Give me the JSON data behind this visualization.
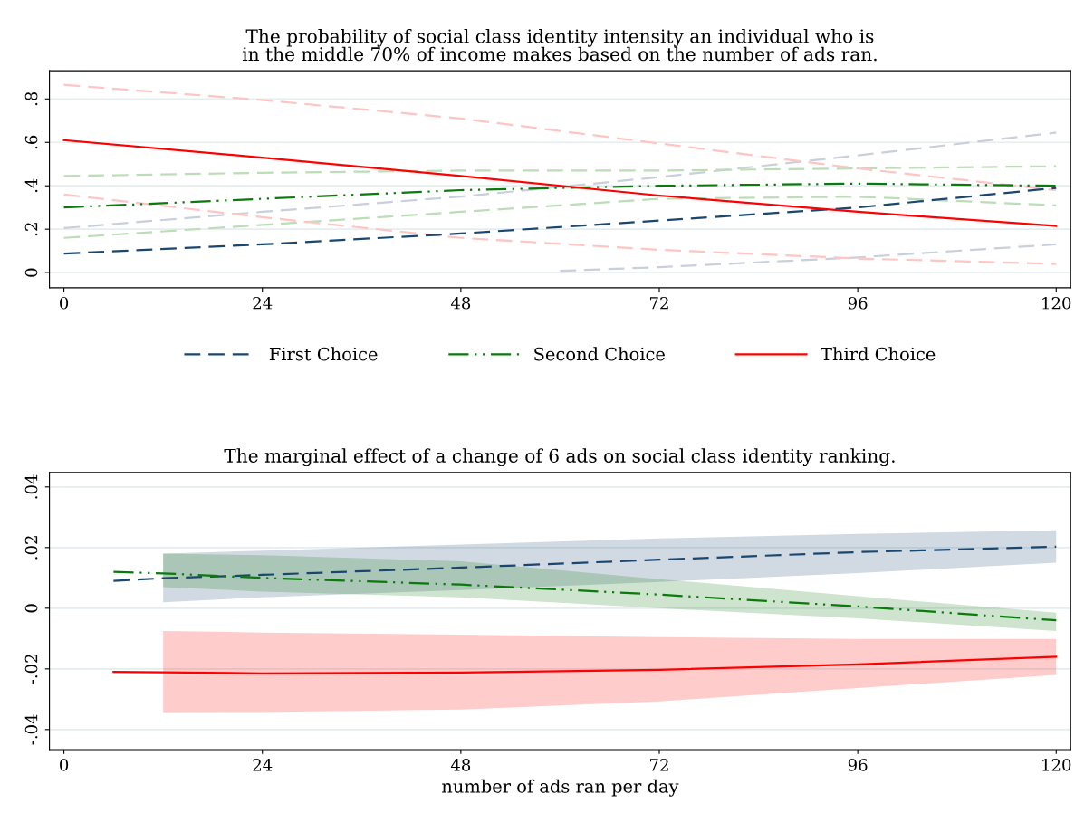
{
  "chart_data": [
    {
      "type": "line",
      "title": "The probability of social class identity intensity an individual who is\nin the middle 70% of income makes based on the number of ads ran.",
      "x": [
        0,
        24,
        48,
        72,
        96,
        120
      ],
      "xlim": [
        -1.75,
        121.75
      ],
      "xticks": [
        0,
        24,
        48,
        72,
        96,
        120
      ],
      "ylim": [
        -0.07,
        0.93
      ],
      "yticks": [
        {
          "value": 0,
          "label": "0"
        },
        {
          "value": 0.2,
          "label": ".2"
        },
        {
          "value": 0.4,
          "label": ".4"
        },
        {
          "value": 0.6,
          "label": ".6"
        },
        {
          "value": 0.8,
          "label": ".8"
        }
      ],
      "grid": "y",
      "legend": "bottom",
      "tick_labels": true,
      "series": [
        {
          "color": "#c9d0db",
          "line_style": "dashed",
          "values": [
            0.205,
            0.28,
            0.35,
            0.44,
            0.54,
            0.645
          ]
        },
        {
          "color": "#c9d0db",
          "line_style": "dashed",
          "x": [
            60,
            72,
            96,
            120
          ],
          "values": [
            0.008,
            0.025,
            0.07,
            0.13
          ]
        },
        {
          "color": "#bcdeb6",
          "line_style": "dashed",
          "values": [
            0.445,
            0.46,
            0.47,
            0.47,
            0.48,
            0.49
          ]
        },
        {
          "color": "#bcdeb6",
          "line_style": "dashed",
          "values": [
            0.16,
            0.22,
            0.28,
            0.34,
            0.35,
            0.31
          ]
        },
        {
          "color": "#ffc4c4",
          "line_style": "dashed",
          "values": [
            0.865,
            0.795,
            0.71,
            0.595,
            0.48,
            0.38
          ]
        },
        {
          "color": "#ffc4c4",
          "line_style": "dashed",
          "values": [
            0.36,
            0.255,
            0.16,
            0.105,
            0.065,
            0.04
          ]
        },
        {
          "name": "First Choice",
          "color": "#1a476f",
          "line_style": "dashed",
          "values": [
            0.0875,
            0.13,
            0.18,
            0.24,
            0.3,
            0.39
          ]
        },
        {
          "name": "Second Choice",
          "color": "#0a7a0a",
          "line_style": "dashdotdot",
          "values": [
            0.3,
            0.34,
            0.38,
            0.4,
            0.41,
            0.4
          ]
        },
        {
          "name": "Third Choice",
          "color": "#ff0000",
          "line_style": "solid",
          "values": [
            0.61,
            0.53,
            0.445,
            0.355,
            0.28,
            0.215
          ]
        }
      ]
    },
    {
      "type": "line",
      "title": "The marginal effect of a change of 6 ads on social class identity ranking.",
      "xlabel": "number of ads ran per day",
      "x": [
        6,
        12,
        24,
        48,
        72,
        96,
        120
      ],
      "xlim": [
        -1.75,
        121.75
      ],
      "xticks": [
        0,
        24,
        48,
        72,
        96,
        120
      ],
      "ylim": [
        -0.0466,
        0.0448
      ],
      "yticks": [
        {
          "value": -0.04,
          "label": "-.04"
        },
        {
          "value": -0.02,
          "label": "-.02"
        },
        {
          "value": 0,
          "label": "0"
        },
        {
          "value": 0.02,
          "label": ".02"
        },
        {
          "value": 0.04,
          "label": ".04"
        }
      ],
      "grid": "y",
      "series": [
        {
          "color": "#1a476f",
          "line_style": "dashed",
          "values": [
            0.009,
            0.0099,
            0.011,
            0.0134,
            0.016,
            0.0185,
            0.0203
          ],
          "upper": [
            null,
            0.018,
            0.019,
            0.021,
            0.023,
            0.0245,
            0.0257
          ],
          "lower": [
            null,
            0.002,
            0.0036,
            0.006,
            0.0087,
            0.0116,
            0.015
          ]
        },
        {
          "color": "#0a7a0a",
          "line_style": "dashdotdot",
          "values": [
            0.012,
            0.0115,
            0.01,
            0.0078,
            0.0045,
            0.0006,
            -0.004
          ],
          "upper": [
            null,
            0.018,
            0.0175,
            0.0155,
            0.0096,
            0.004,
            -0.0015
          ],
          "lower": [
            null,
            0.007,
            0.0055,
            0.0036,
            0,
            -0.0033,
            -0.0075
          ]
        },
        {
          "color": "#ff0000",
          "line_style": "solid",
          "values": [
            -0.021,
            -0.0211,
            -0.0215,
            -0.0212,
            -0.0203,
            -0.0185,
            -0.016
          ],
          "upper": [
            null,
            -0.0075,
            -0.008,
            -0.0087,
            -0.0095,
            -0.0101,
            -0.0101
          ],
          "lower": [
            null,
            -0.0343,
            -0.0342,
            -0.0334,
            -0.0307,
            -0.0263,
            -0.022
          ]
        }
      ]
    }
  ]
}
